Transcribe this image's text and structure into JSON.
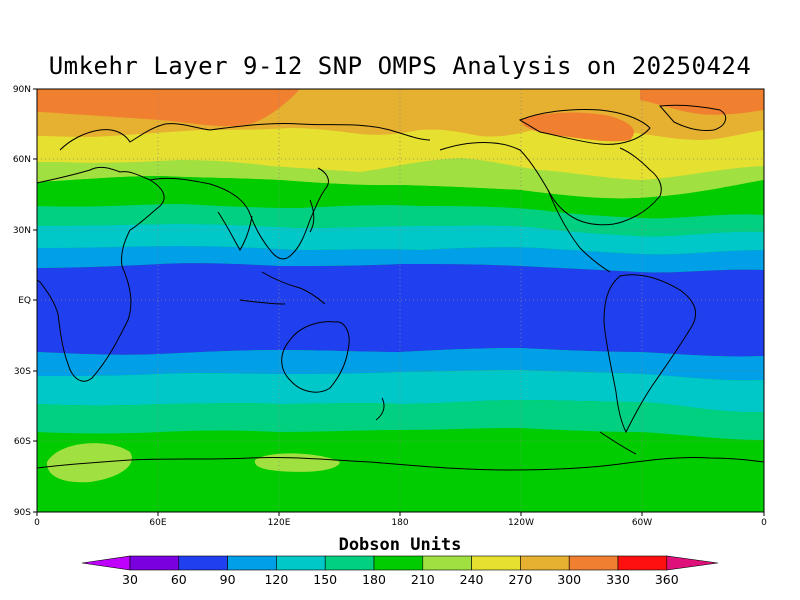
{
  "title": "Umkehr Layer 9-12 SNP OMPS Analysis on 20250424",
  "map": {
    "lat_labels": [
      "90N",
      "60N",
      "30N",
      "EQ",
      "30S",
      "60S",
      "90S"
    ],
    "lon_labels": [
      "0",
      "60E",
      "120E",
      "180",
      "120W",
      "60W",
      "0"
    ]
  },
  "colorbar": {
    "label": "Dobson Units",
    "ticks": [
      "30",
      "60",
      "90",
      "120",
      "150",
      "180",
      "210",
      "240",
      "270",
      "300",
      "330",
      "360"
    ],
    "colors": [
      "#c000ff",
      "#7a00e0",
      "#2040f0",
      "#00a0e8",
      "#00c8c8",
      "#00d080",
      "#00cc00",
      "#a0e040",
      "#e6e030",
      "#e6b030",
      "#f08030",
      "#ff1010",
      "#e0107a"
    ]
  }
}
